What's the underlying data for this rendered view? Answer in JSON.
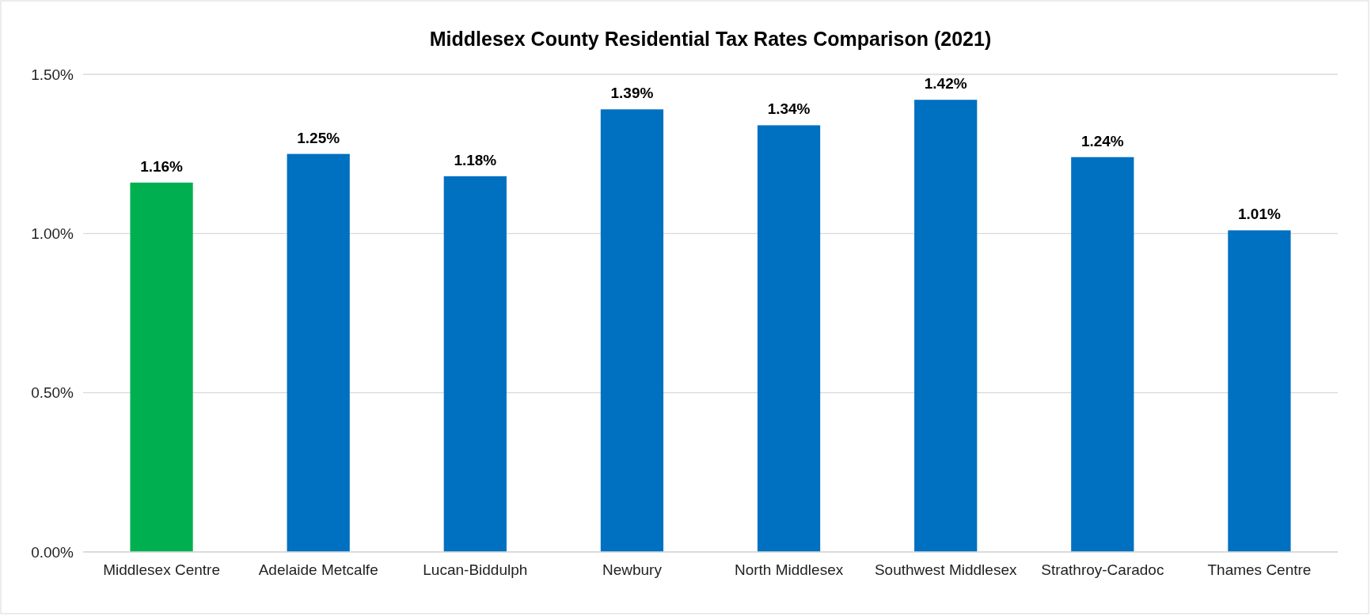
{
  "chart_data": {
    "type": "bar",
    "title": "Middlesex County Residential Tax Rates Comparison (2021)",
    "categories": [
      "Middlesex Centre",
      "Adelaide Metcalfe",
      "Lucan-Biddulph",
      "Newbury",
      "North Middlesex",
      "Southwest Middlesex",
      "Strathroy-Caradoc",
      "Thames Centre"
    ],
    "values": [
      1.16,
      1.25,
      1.18,
      1.39,
      1.34,
      1.42,
      1.24,
      1.01
    ],
    "colors": [
      "#00b050",
      "#0070c0",
      "#0070c0",
      "#0070c0",
      "#0070c0",
      "#0070c0",
      "#0070c0",
      "#0070c0"
    ],
    "value_labels": [
      "1.16%",
      "1.25%",
      "1.18%",
      "1.39%",
      "1.34%",
      "1.42%",
      "1.24%",
      "1.01%"
    ],
    "ylim": [
      0,
      1.5
    ],
    "yticks": [
      {
        "value": 0,
        "label": "0.00%"
      },
      {
        "value": 0.5,
        "label": "0.50%"
      },
      {
        "value": 1,
        "label": "1.00%"
      },
      {
        "value": 1.5,
        "label": "1.50%"
      }
    ],
    "grid": "y"
  }
}
